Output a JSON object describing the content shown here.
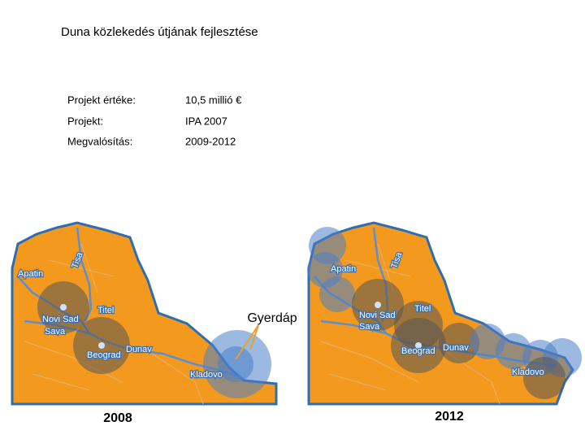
{
  "title": "Duna közlekedés útjának fejlesztése",
  "table": {
    "rows": [
      [
        "Projekt értéke:",
        "10,5 millió €"
      ],
      [
        "Projekt:",
        "IPA 2007"
      ],
      [
        "Megvalósítás:",
        "2009-2012"
      ]
    ]
  },
  "annotation": "Gyerdáp",
  "maps": [
    {
      "caption": "2008",
      "places": [
        "Apatin",
        "Tisa",
        "Titel",
        "Novi Sad",
        "Sava",
        "Beograd",
        "Dunav",
        "Kladovo"
      ]
    },
    {
      "caption": "2012",
      "places": [
        "Apatin",
        "Tisa",
        "Titel",
        "Novi Sad",
        "Sava",
        "Beograd",
        "Dunav",
        "Kladovo"
      ]
    }
  ]
}
